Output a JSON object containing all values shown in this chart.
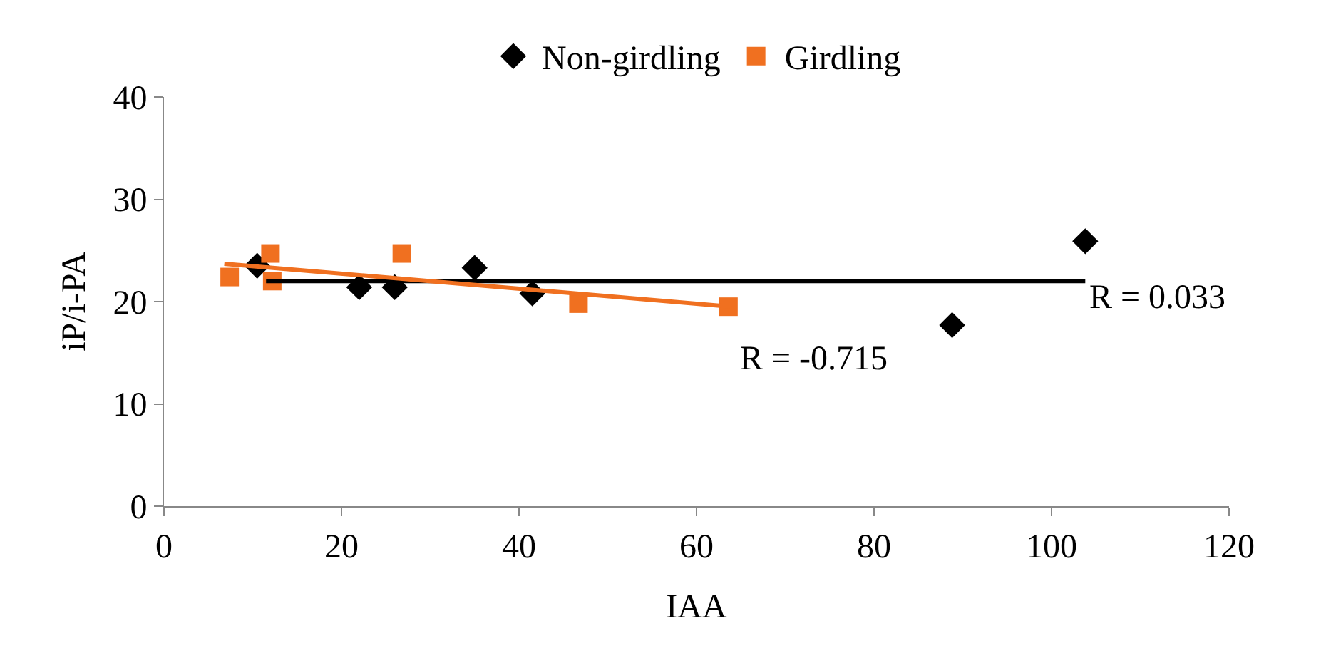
{
  "chart_data": {
    "type": "scatter",
    "xlabel": "IAA",
    "ylabel": "iP/i-PA",
    "xlim": [
      0,
      120
    ],
    "xticks": [
      0,
      20,
      40,
      60,
      80,
      100,
      120
    ],
    "ylim": [
      0,
      40
    ],
    "yticks": [
      0,
      10,
      20,
      30,
      40
    ],
    "grid": false,
    "legend": "top",
    "series": [
      {
        "name": "Non-girdling",
        "color": "#000000",
        "marker": "diamond",
        "x": [
          10.5,
          22,
          26,
          35,
          41.5,
          88.8,
          103.8
        ],
        "values": [
          23.5,
          21.4,
          21.4,
          23.3,
          20.8,
          17.7,
          25.9
        ]
      },
      {
        "name": "Girdling",
        "color": "#f07020",
        "marker": "square",
        "x": [
          7.4,
          12,
          12.2,
          26.8,
          46.7,
          63.6
        ],
        "values": [
          22.4,
          24.7,
          22.0,
          24.7,
          19.8,
          19.5
        ]
      },
      {
        "type": "line",
        "color": "#000000",
        "line_style": "solid",
        "x": [
          11.5,
          103.8
        ],
        "values": [
          22.0,
          22.0
        ]
      },
      {
        "type": "line",
        "color": "#f07020",
        "line_style": "solid",
        "x": [
          6.8,
          64
        ],
        "values": [
          23.7,
          19.5
        ]
      }
    ],
    "annotations": [
      "R = -0.715",
      "R = 0.033"
    ]
  }
}
